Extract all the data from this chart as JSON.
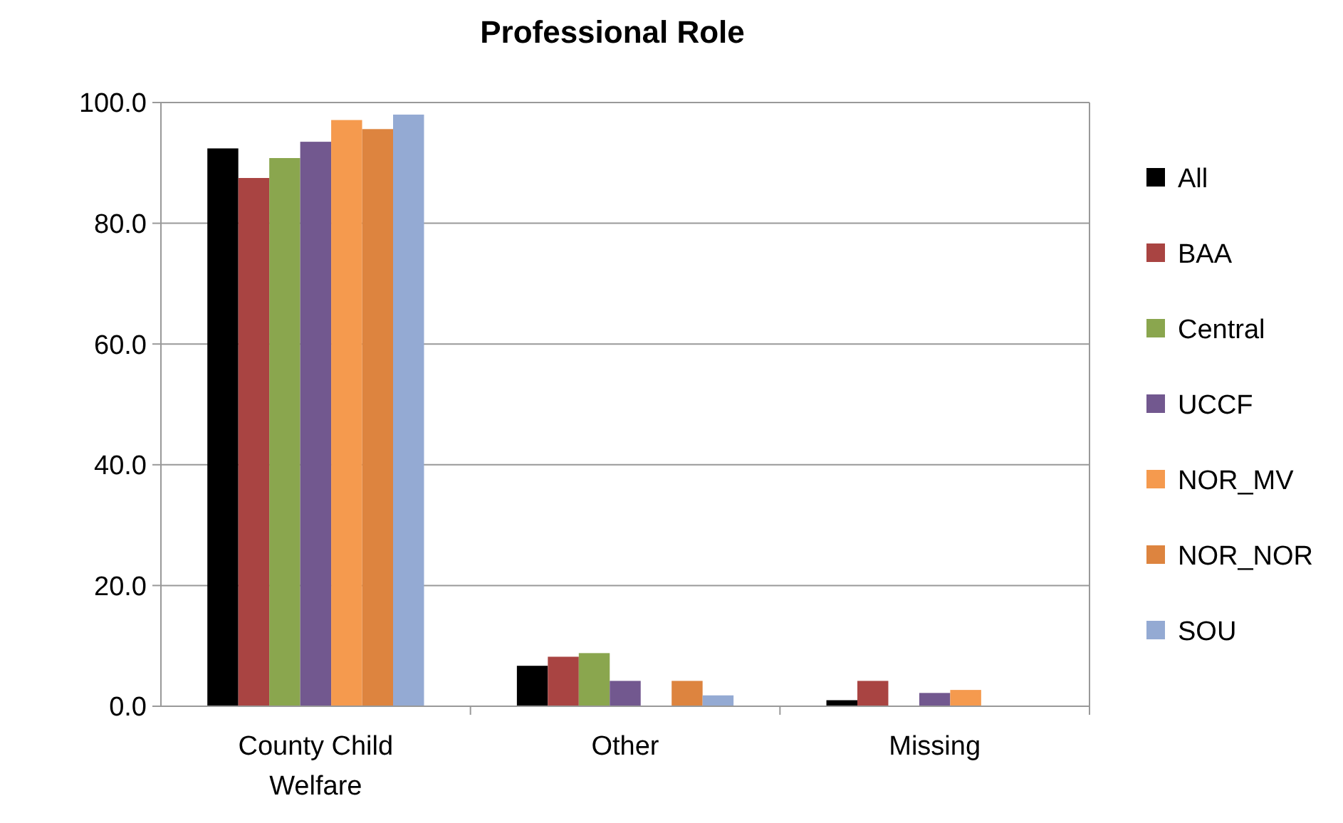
{
  "chart_data": {
    "type": "bar",
    "title": "Professional Role",
    "categories": [
      "County Child Welfare",
      "Other",
      "Missing"
    ],
    "series": [
      {
        "name": "All",
        "color": "#000000",
        "values": [
          92.4,
          6.7,
          1.0
        ]
      },
      {
        "name": "BAA",
        "color": "#a94442",
        "values": [
          87.5,
          8.2,
          4.2
        ]
      },
      {
        "name": "Central",
        "color": "#8aa64e",
        "values": [
          90.8,
          8.8,
          0
        ]
      },
      {
        "name": "UCCF",
        "color": "#72588f",
        "values": [
          93.5,
          4.2,
          2.2
        ]
      },
      {
        "name": "NOR_MV",
        "color": "#f59a4e",
        "values": [
          97.1,
          0,
          2.7
        ]
      },
      {
        "name": "NOR_NOR",
        "color": "#dd843f",
        "values": [
          95.6,
          4.2,
          0
        ]
      },
      {
        "name": "SOU",
        "color": "#94aad3",
        "values": [
          98.0,
          1.8,
          0
        ]
      }
    ],
    "ylim": [
      0,
      100
    ],
    "yticks": [
      {
        "value": 0,
        "label": "0.0"
      },
      {
        "value": 20,
        "label": "20.0"
      },
      {
        "value": 40,
        "label": "40.0"
      },
      {
        "value": 60,
        "label": "60.0"
      },
      {
        "value": 80,
        "label": "80.0"
      },
      {
        "value": 100,
        "label": "100.0"
      }
    ],
    "grid": "y",
    "legend": "right"
  }
}
